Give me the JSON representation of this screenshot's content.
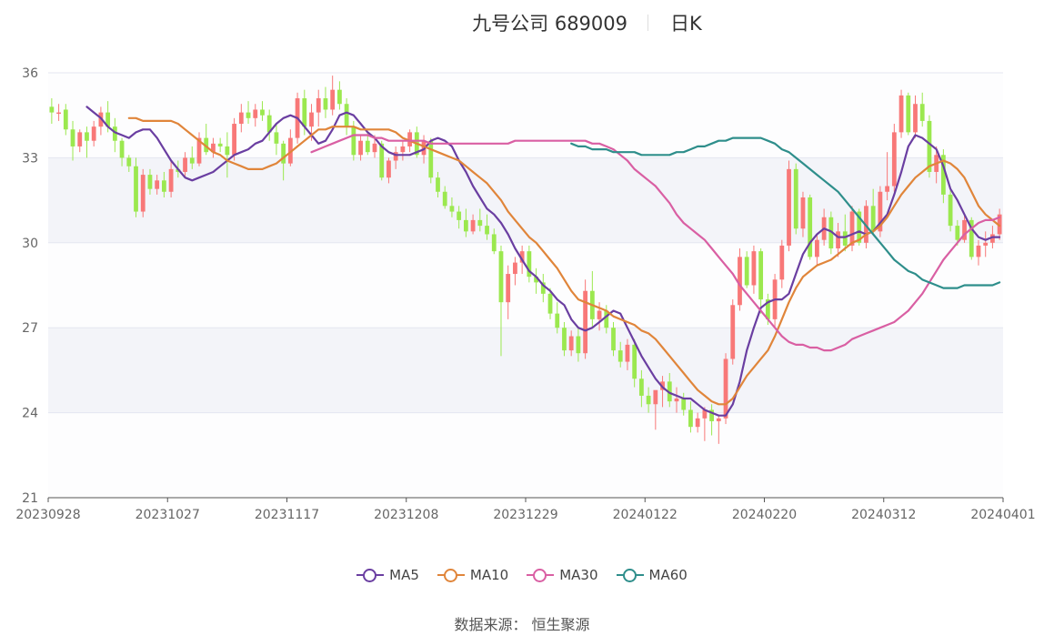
{
  "title": {
    "name": "九号公司 689009",
    "period": "日K"
  },
  "source_text": "数据来源： 恒生聚源",
  "legend": [
    {
      "label": "MA5",
      "color": "#6a3ea1"
    },
    {
      "label": "MA10",
      "color": "#e0853a"
    },
    {
      "label": "MA30",
      "color": "#d95fa3"
    },
    {
      "label": "MA60",
      "color": "#2e8e8b"
    }
  ],
  "chart_data": {
    "type": "candlestick",
    "y_axis": {
      "min": 21,
      "max": 36,
      "ticks": [
        "21",
        "24",
        "27",
        "30",
        "33",
        "36"
      ]
    },
    "x_ticks": [
      "20230928",
      "20231027",
      "20231117",
      "20231208",
      "20231229",
      "20240122",
      "20240220",
      "20240312",
      "20240401"
    ],
    "colors": {
      "up": "#f87878",
      "down": "#9be84f"
    },
    "candles_ohlc": [
      [
        34.8,
        35.1,
        34.2,
        34.6
      ],
      [
        34.6,
        34.9,
        34.3,
        34.6
      ],
      [
        34.7,
        34.9,
        33.8,
        34.0
      ],
      [
        34.0,
        34.3,
        32.9,
        33.4
      ],
      [
        33.4,
        34.0,
        33.2,
        33.9
      ],
      [
        33.9,
        34.1,
        33.0,
        33.6
      ],
      [
        33.6,
        34.3,
        33.4,
        34.1
      ],
      [
        34.1,
        34.8,
        33.8,
        34.6
      ],
      [
        34.6,
        35.0,
        33.9,
        34.1
      ],
      [
        34.1,
        34.4,
        33.2,
        33.6
      ],
      [
        33.6,
        33.7,
        32.7,
        33.0
      ],
      [
        33.0,
        33.1,
        32.5,
        32.7
      ],
      [
        32.7,
        33.0,
        30.9,
        31.1
      ],
      [
        31.1,
        32.6,
        30.9,
        32.4
      ],
      [
        32.4,
        32.6,
        31.7,
        31.9
      ],
      [
        31.9,
        32.4,
        31.7,
        32.2
      ],
      [
        32.2,
        32.5,
        31.6,
        31.8
      ],
      [
        31.8,
        32.9,
        31.6,
        32.6
      ],
      [
        32.6,
        32.9,
        32.3,
        32.5
      ],
      [
        32.5,
        33.2,
        32.3,
        33.0
      ],
      [
        33.0,
        33.4,
        32.6,
        32.8
      ],
      [
        32.8,
        33.9,
        32.7,
        33.7
      ],
      [
        33.7,
        34.2,
        33.1,
        33.2
      ],
      [
        33.2,
        33.7,
        33.0,
        33.5
      ],
      [
        33.5,
        33.7,
        33.2,
        33.4
      ],
      [
        33.4,
        33.9,
        32.3,
        33.1
      ],
      [
        33.1,
        34.4,
        32.9,
        34.2
      ],
      [
        34.2,
        34.9,
        33.9,
        34.6
      ],
      [
        34.6,
        35.0,
        34.2,
        34.4
      ],
      [
        34.4,
        34.9,
        34.1,
        34.7
      ],
      [
        34.7,
        35.0,
        34.3,
        34.5
      ],
      [
        34.5,
        34.7,
        33.6,
        33.9
      ],
      [
        33.9,
        34.2,
        33.1,
        33.5
      ],
      [
        33.5,
        33.6,
        32.2,
        32.8
      ],
      [
        32.8,
        34.0,
        32.7,
        33.7
      ],
      [
        33.7,
        35.3,
        33.5,
        35.1
      ],
      [
        35.1,
        35.4,
        33.8,
        34.1
      ],
      [
        34.1,
        34.9,
        33.6,
        34.6
      ],
      [
        34.6,
        35.4,
        34.1,
        35.1
      ],
      [
        35.1,
        35.5,
        34.4,
        34.7
      ],
      [
        34.7,
        35.9,
        34.5,
        35.4
      ],
      [
        35.4,
        35.7,
        34.7,
        34.9
      ],
      [
        34.9,
        35.1,
        33.8,
        34.1
      ],
      [
        34.1,
        34.3,
        32.9,
        33.1
      ],
      [
        33.1,
        33.8,
        32.9,
        33.6
      ],
      [
        33.6,
        33.9,
        33.1,
        33.2
      ],
      [
        33.2,
        33.8,
        33.0,
        33.5
      ],
      [
        33.5,
        33.6,
        32.2,
        32.3
      ],
      [
        32.3,
        33.0,
        32.1,
        32.9
      ],
      [
        32.9,
        33.4,
        32.6,
        33.2
      ],
      [
        33.2,
        33.6,
        32.9,
        33.4
      ],
      [
        33.4,
        34.0,
        33.2,
        33.9
      ],
      [
        33.9,
        34.1,
        33.0,
        33.1
      ],
      [
        33.1,
        33.8,
        32.8,
        33.6
      ],
      [
        33.6,
        33.7,
        32.1,
        32.3
      ],
      [
        32.3,
        32.5,
        31.6,
        31.8
      ],
      [
        31.8,
        32.0,
        31.2,
        31.3
      ],
      [
        31.3,
        31.6,
        30.9,
        31.1
      ],
      [
        31.1,
        31.3,
        30.5,
        30.8
      ],
      [
        30.8,
        31.2,
        30.2,
        30.4
      ],
      [
        30.4,
        31.0,
        30.3,
        30.8
      ],
      [
        30.8,
        31.2,
        30.4,
        30.6
      ],
      [
        30.6,
        31.0,
        30.1,
        30.3
      ],
      [
        30.3,
        30.5,
        29.6,
        29.7
      ],
      [
        29.7,
        29.9,
        26.0,
        27.9
      ],
      [
        27.9,
        29.2,
        27.3,
        28.9
      ],
      [
        28.9,
        29.5,
        28.5,
        29.3
      ],
      [
        29.3,
        29.9,
        28.9,
        29.7
      ],
      [
        29.7,
        29.9,
        28.6,
        28.8
      ],
      [
        28.8,
        29.1,
        28.2,
        28.6
      ],
      [
        28.6,
        28.9,
        27.9,
        28.2
      ],
      [
        28.2,
        28.4,
        27.3,
        27.5
      ],
      [
        27.5,
        27.9,
        26.8,
        27.0
      ],
      [
        27.0,
        27.2,
        26.0,
        26.2
      ],
      [
        26.2,
        26.9,
        26.0,
        26.7
      ],
      [
        26.7,
        27.0,
        25.8,
        26.1
      ],
      [
        26.1,
        28.7,
        25.9,
        28.3
      ],
      [
        28.3,
        29.0,
        27.0,
        27.3
      ],
      [
        27.3,
        27.9,
        26.9,
        27.6
      ],
      [
        27.6,
        27.8,
        26.8,
        27.0
      ],
      [
        27.0,
        27.2,
        26.0,
        26.2
      ],
      [
        26.2,
        26.5,
        25.6,
        25.8
      ],
      [
        25.8,
        26.6,
        25.5,
        26.4
      ],
      [
        26.4,
        26.6,
        24.9,
        25.2
      ],
      [
        25.2,
        25.5,
        24.2,
        24.6
      ],
      [
        24.6,
        24.9,
        24.0,
        24.3
      ],
      [
        24.3,
        24.6,
        23.4,
        24.8
      ],
      [
        24.8,
        25.3,
        24.2,
        25.1
      ],
      [
        25.1,
        25.4,
        24.2,
        24.4
      ],
      [
        24.4,
        24.9,
        24.0,
        24.5
      ],
      [
        24.5,
        24.7,
        23.9,
        24.1
      ],
      [
        24.1,
        24.4,
        23.3,
        23.5
      ],
      [
        23.5,
        24.0,
        23.3,
        23.8
      ],
      [
        23.8,
        24.2,
        23.0,
        24.1
      ],
      [
        24.1,
        24.3,
        23.2,
        23.7
      ],
      [
        23.7,
        23.9,
        22.9,
        23.8
      ],
      [
        23.8,
        26.1,
        23.6,
        25.9
      ],
      [
        25.9,
        28.0,
        25.7,
        27.8
      ],
      [
        27.8,
        29.8,
        27.6,
        29.5
      ],
      [
        29.5,
        29.7,
        28.4,
        28.5
      ],
      [
        28.5,
        29.9,
        28.2,
        29.7
      ],
      [
        29.7,
        29.8,
        27.5,
        28.0
      ],
      [
        28.0,
        28.2,
        27.1,
        27.3
      ],
      [
        27.3,
        28.9,
        27.0,
        28.7
      ],
      [
        28.7,
        30.1,
        28.4,
        29.9
      ],
      [
        29.9,
        32.9,
        29.7,
        32.6
      ],
      [
        32.6,
        32.8,
        30.3,
        30.5
      ],
      [
        30.5,
        31.8,
        30.2,
        31.6
      ],
      [
        31.6,
        31.7,
        29.4,
        29.5
      ],
      [
        29.5,
        30.3,
        29.2,
        30.1
      ],
      [
        30.1,
        31.2,
        29.9,
        30.9
      ],
      [
        30.9,
        31.1,
        29.6,
        29.8
      ],
      [
        29.8,
        30.7,
        29.5,
        30.4
      ],
      [
        30.4,
        31.0,
        29.7,
        29.9
      ],
      [
        29.9,
        31.3,
        29.7,
        31.1
      ],
      [
        31.1,
        31.2,
        29.9,
        30.0
      ],
      [
        30.0,
        31.5,
        29.8,
        31.3
      ],
      [
        31.3,
        31.9,
        30.3,
        30.4
      ],
      [
        30.4,
        32.0,
        30.2,
        31.8
      ],
      [
        31.8,
        33.2,
        31.5,
        32.0
      ],
      [
        32.0,
        34.2,
        31.8,
        33.9
      ],
      [
        33.9,
        35.4,
        33.7,
        35.2
      ],
      [
        35.2,
        35.3,
        33.8,
        33.9
      ],
      [
        33.9,
        35.2,
        33.7,
        34.9
      ],
      [
        34.9,
        35.3,
        34.1,
        34.3
      ],
      [
        34.3,
        34.5,
        32.3,
        32.5
      ],
      [
        32.5,
        33.4,
        32.1,
        33.1
      ],
      [
        33.1,
        33.3,
        31.4,
        31.7
      ],
      [
        31.7,
        31.9,
        30.4,
        30.6
      ],
      [
        30.6,
        30.8,
        29.9,
        30.1
      ],
      [
        30.1,
        31.0,
        30.0,
        30.8
      ],
      [
        30.8,
        30.9,
        29.4,
        29.5
      ],
      [
        29.5,
        30.1,
        29.2,
        29.9
      ],
      [
        29.9,
        30.4,
        29.5,
        30.0
      ],
      [
        30.0,
        30.6,
        29.8,
        30.3
      ],
      [
        30.3,
        31.2,
        30.1,
        31.0
      ]
    ],
    "series": [
      {
        "name": "MA5",
        "values": [
          34.8,
          34.6,
          34.4,
          34.1,
          33.9,
          33.8,
          33.7,
          33.9,
          34.0,
          34.0,
          33.7,
          33.3,
          32.9,
          32.6,
          32.3,
          32.2,
          32.3,
          32.4,
          32.5,
          32.7,
          32.9,
          33.1,
          33.2,
          33.3,
          33.5,
          33.6,
          33.9,
          34.2,
          34.4,
          34.5,
          34.4,
          34.1,
          33.8,
          33.5,
          33.6,
          34.0,
          34.5,
          34.6,
          34.5,
          34.2,
          33.9,
          33.7,
          33.4,
          33.2,
          33.1,
          33.1,
          33.1,
          33.2,
          33.3,
          33.6,
          33.7,
          33.6,
          33.4,
          32.9,
          32.5,
          32.0,
          31.6,
          31.2,
          31.0,
          30.7,
          30.3,
          29.8,
          29.4,
          29.0,
          28.8,
          28.5,
          28.3,
          28.0,
          27.8,
          27.3,
          27.0,
          26.9,
          27.0,
          27.2,
          27.4,
          27.6,
          27.5,
          27.0,
          26.5,
          26.0,
          25.6,
          25.2,
          24.9,
          24.7,
          24.6,
          24.5,
          24.5,
          24.3,
          24.1,
          24.0,
          23.9,
          23.9,
          24.3,
          25.1,
          26.2,
          27.0,
          27.7,
          27.9,
          28.0,
          28.0,
          28.2,
          28.9,
          29.6,
          30.0,
          30.3,
          30.5,
          30.4,
          30.2,
          30.2,
          30.3,
          30.4,
          30.3,
          30.4,
          30.7,
          31.0,
          31.7,
          32.5,
          33.4,
          33.8,
          33.7,
          33.5,
          33.3,
          32.7,
          31.9,
          31.5,
          31.0,
          30.5,
          30.2,
          30.1,
          30.2,
          30.2
        ]
      },
      {
        "name": "MA10",
        "values": [
          34.4,
          34.4,
          34.3,
          34.3,
          34.3,
          34.3,
          34.3,
          34.2,
          34.0,
          33.8,
          33.6,
          33.4,
          33.2,
          33.1,
          32.9,
          32.8,
          32.7,
          32.6,
          32.6,
          32.6,
          32.7,
          32.8,
          33.0,
          33.2,
          33.4,
          33.6,
          33.8,
          34.0,
          34.0,
          34.1,
          34.1,
          34.1,
          34.1,
          34.0,
          34.0,
          34.0,
          34.0,
          34.0,
          33.9,
          33.7,
          33.6,
          33.5,
          33.4,
          33.3,
          33.2,
          33.1,
          33.0,
          32.9,
          32.7,
          32.5,
          32.3,
          32.1,
          31.8,
          31.5,
          31.1,
          30.8,
          30.5,
          30.2,
          30.0,
          29.7,
          29.4,
          29.1,
          28.7,
          28.3,
          28.0,
          27.9,
          27.8,
          27.7,
          27.6,
          27.4,
          27.3,
          27.2,
          27.1,
          26.9,
          26.8,
          26.6,
          26.3,
          26.0,
          25.7,
          25.4,
          25.1,
          24.8,
          24.6,
          24.4,
          24.3,
          24.3,
          24.5,
          24.9,
          25.3,
          25.6,
          25.9,
          26.2,
          26.7,
          27.3,
          27.9,
          28.4,
          28.8,
          29.0,
          29.2,
          29.3,
          29.4,
          29.6,
          29.8,
          30.0,
          30.1,
          30.3,
          30.4,
          30.6,
          30.9,
          31.3,
          31.7,
          32.0,
          32.3,
          32.5,
          32.7,
          32.8,
          32.9,
          32.8,
          32.6,
          32.3,
          31.8,
          31.3,
          31.0,
          30.8,
          30.6
        ]
      },
      {
        "name": "MA30",
        "values": [
          33.2,
          33.3,
          33.4,
          33.5,
          33.6,
          33.7,
          33.8,
          33.8,
          33.8,
          33.7,
          33.7,
          33.6,
          33.6,
          33.6,
          33.6,
          33.6,
          33.6,
          33.5,
          33.5,
          33.5,
          33.5,
          33.5,
          33.5,
          33.5,
          33.5,
          33.5,
          33.5,
          33.5,
          33.5,
          33.6,
          33.6,
          33.6,
          33.6,
          33.6,
          33.6,
          33.6,
          33.6,
          33.6,
          33.6,
          33.6,
          33.5,
          33.5,
          33.4,
          33.3,
          33.1,
          32.9,
          32.6,
          32.4,
          32.2,
          32.0,
          31.7,
          31.4,
          31.0,
          30.7,
          30.5,
          30.3,
          30.1,
          29.8,
          29.5,
          29.2,
          28.9,
          28.5,
          28.2,
          27.9,
          27.6,
          27.3,
          27.0,
          26.7,
          26.5,
          26.4,
          26.4,
          26.3,
          26.3,
          26.2,
          26.2,
          26.3,
          26.4,
          26.6,
          26.7,
          26.8,
          26.9,
          27.0,
          27.1,
          27.2,
          27.4,
          27.6,
          27.9,
          28.2,
          28.6,
          29.0,
          29.4,
          29.7,
          30.0,
          30.3,
          30.5,
          30.7,
          30.8,
          30.8,
          30.9
        ]
      },
      {
        "name": "MA60",
        "values": [
          33.5,
          33.4,
          33.4,
          33.3,
          33.3,
          33.3,
          33.2,
          33.2,
          33.2,
          33.2,
          33.1,
          33.1,
          33.1,
          33.1,
          33.1,
          33.2,
          33.2,
          33.3,
          33.4,
          33.4,
          33.5,
          33.6,
          33.6,
          33.7,
          33.7,
          33.7,
          33.7,
          33.7,
          33.6,
          33.5,
          33.3,
          33.2,
          33.0,
          32.8,
          32.6,
          32.4,
          32.2,
          32.0,
          31.8,
          31.5,
          31.2,
          30.9,
          30.6,
          30.3,
          30.0,
          29.7,
          29.4,
          29.2,
          29.0,
          28.9,
          28.7,
          28.6,
          28.5,
          28.4,
          28.4,
          28.4,
          28.5,
          28.5,
          28.5,
          28.5,
          28.5,
          28.6
        ]
      }
    ]
  }
}
